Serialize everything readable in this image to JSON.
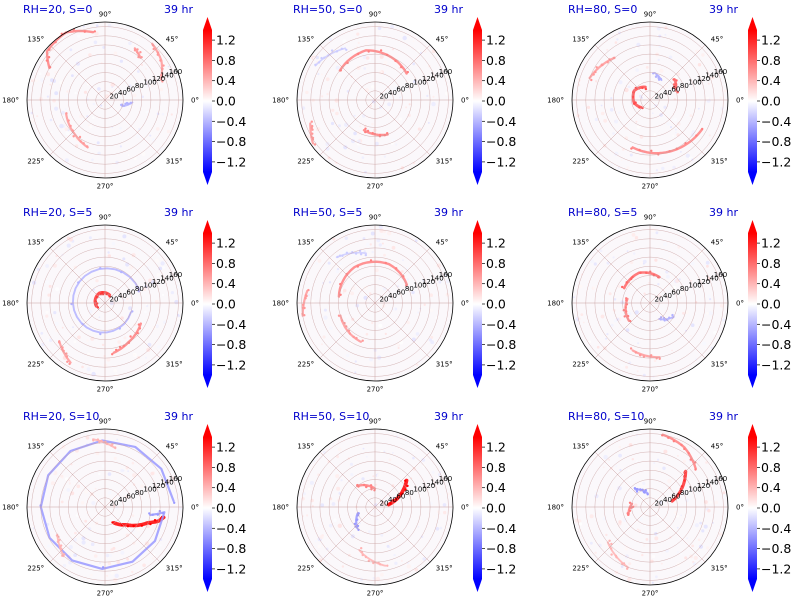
{
  "figure": {
    "layout": "3 rows x 3 columns of polar contour panels, each with its own vertical colorbar",
    "time_label": "39 hr"
  },
  "colormap": {
    "name": "bwr",
    "low_color": "#0000ff",
    "mid_color": "#ffffff",
    "high_color": "#ff0000"
  },
  "chart_data": [
    {
      "type": "heatmap",
      "projection": "polar",
      "title": "RH=20, S=0",
      "time": "39 hr",
      "rh": 20,
      "s": 0,
      "row": 0,
      "col": 0,
      "angle_ticks": [
        "0°",
        "45°",
        "90°",
        "135°",
        "180°",
        "225°",
        "270°",
        "315°"
      ],
      "radius_ticks": [
        20,
        40,
        60,
        80,
        100,
        120,
        140,
        160
      ],
      "colorbar": {
        "ticks": [
          "1.2",
          "0.8",
          "0.4",
          "0.0",
          "−0.4",
          "−0.8",
          "−1.2"
        ],
        "vmin": -1.4,
        "vmax": 1.4,
        "extend": "both"
      },
      "features": [
        {
          "sign": 1,
          "r": [
            150,
            170,
            165,
            140
          ],
          "theta": [
            100,
            120,
            140,
            150
          ],
          "amp": 0.5
        },
        {
          "sign": 1,
          "r": [
            120,
            130
          ],
          "theta": [
            50,
            60
          ],
          "amp": 0.4
        },
        {
          "sign": 1,
          "r": [
            90,
            100,
            110
          ],
          "theta": [
            200,
            230,
            250
          ],
          "amp": 0.4
        },
        {
          "sign": -1,
          "r": [
            40,
            60
          ],
          "theta": [
            340,
            355
          ],
          "amp": 0.3
        },
        {
          "sign": 1,
          "r": [
            130,
            150,
            160
          ],
          "theta": [
            20,
            35,
            50
          ],
          "amp": 0.4
        }
      ]
    },
    {
      "type": "heatmap",
      "projection": "polar",
      "title": "RH=50, S=0",
      "time": "39 hr",
      "rh": 50,
      "s": 0,
      "row": 0,
      "col": 1,
      "angle_ticks": [
        "0°",
        "45°",
        "90°",
        "135°",
        "180°",
        "225°",
        "270°",
        "315°"
      ],
      "radius_ticks": [
        20,
        40,
        60,
        80,
        100,
        120,
        140,
        160
      ],
      "colorbar": {
        "ticks": [
          "1.2",
          "0.8",
          "0.4",
          "0.0",
          "−0.4",
          "−0.8",
          "−1.2"
        ],
        "vmin": -1.4,
        "vmax": 1.4,
        "extend": "both"
      },
      "features": [
        {
          "sign": 1,
          "r": [
            90,
            100,
            110,
            100
          ],
          "theta": [
            40,
            70,
            100,
            140
          ],
          "amp": 0.5
        },
        {
          "sign": 1,
          "r": [
            70,
            80
          ],
          "theta": [
            250,
            290
          ],
          "amp": 0.5
        },
        {
          "sign": 1,
          "r": [
            150,
            165
          ],
          "theta": [
            200,
            215
          ],
          "amp": 0.4
        },
        {
          "sign": -1,
          "r": [
            130,
            150
          ],
          "theta": [
            120,
            150
          ],
          "amp": 0.2
        }
      ]
    },
    {
      "type": "heatmap",
      "projection": "polar",
      "title": "RH=80, S=0",
      "time": "39 hr",
      "rh": 80,
      "s": 0,
      "row": 0,
      "col": 2,
      "angle_ticks": [
        "0°",
        "45°",
        "90°",
        "135°",
        "180°",
        "225°",
        "270°",
        "315°"
      ],
      "radius_ticks": [
        20,
        40,
        60,
        80,
        100,
        120,
        140,
        160
      ],
      "colorbar": {
        "ticks": [
          "1.2",
          "0.8",
          "0.4",
          "0.0",
          "−0.4",
          "−0.8",
          "−1.2"
        ],
        "vmin": -1.4,
        "vmax": 1.4,
        "extend": "both"
      },
      "features": [
        {
          "sign": 1,
          "r": [
            30,
            40,
            35,
            25
          ],
          "theta": [
            110,
            150,
            190,
            220
          ],
          "amp": 0.7
        },
        {
          "sign": 1,
          "r": [
            60,
            70
          ],
          "theta": [
            20,
            40
          ],
          "amp": 0.6
        },
        {
          "sign": 1,
          "r": [
            110,
            120,
            130
          ],
          "theta": [
            250,
            290,
            330
          ],
          "amp": 0.5
        },
        {
          "sign": 1,
          "r": [
            120,
            140
          ],
          "theta": [
            130,
            160
          ],
          "amp": 0.4
        },
        {
          "sign": -1,
          "r": [
            50,
            60
          ],
          "theta": [
            60,
            80
          ],
          "amp": 0.3
        }
      ]
    },
    {
      "type": "heatmap",
      "projection": "polar",
      "title": "RH=20, S=5",
      "time": "39 hr",
      "rh": 20,
      "s": 5,
      "row": 1,
      "col": 0,
      "angle_ticks": [
        "0°",
        "45°",
        "90°",
        "135°",
        "180°",
        "225°",
        "270°",
        "315°"
      ],
      "radius_ticks": [
        20,
        40,
        60,
        80,
        100,
        120,
        140,
        160
      ],
      "colorbar": {
        "ticks": [
          "1.2",
          "0.8",
          "0.4",
          "0.0",
          "−0.4",
          "−0.8",
          "−1.2"
        ],
        "vmin": -1.4,
        "vmax": 1.4,
        "extend": "both"
      },
      "features": [
        {
          "sign": 1,
          "r": [
            20,
            25,
            20
          ],
          "theta": [
            60,
            120,
            200
          ],
          "amp": 0.8
        },
        {
          "sign": 1,
          "r": [
            90,
            100,
            110
          ],
          "theta": [
            330,
            300,
            280
          ],
          "amp": 0.5
        },
        {
          "sign": 1,
          "r": [
            130,
            150
          ],
          "theta": [
            220,
            240
          ],
          "amp": 0.4
        },
        {
          "sign": -1,
          "r": [
            60,
            80
          ],
          "theta": [
            340,
            20
          ],
          "amp": 0.3
        }
      ]
    },
    {
      "type": "heatmap",
      "projection": "polar",
      "title": "RH=50, S=5",
      "time": "39 hr",
      "rh": 50,
      "s": 5,
      "row": 1,
      "col": 1,
      "angle_ticks": [
        "0°",
        "45°",
        "90°",
        "135°",
        "180°",
        "225°",
        "270°",
        "315°"
      ],
      "radius_ticks": [
        20,
        40,
        60,
        80,
        100,
        120,
        140,
        160
      ],
      "colorbar": {
        "ticks": [
          "1.2",
          "0.8",
          "0.4",
          "0.0",
          "−0.4",
          "−0.8",
          "−1.2"
        ],
        "vmin": -1.4,
        "vmax": 1.4,
        "extend": "both"
      },
      "features": [
        {
          "sign": 1,
          "r": [
            80,
            90,
            90,
            80
          ],
          "theta": [
            30,
            70,
            120,
            170
          ],
          "amp": 0.5
        },
        {
          "sign": 1,
          "r": [
            80,
            90
          ],
          "theta": [
            200,
            250
          ],
          "amp": 0.4
        },
        {
          "sign": 1,
          "r": [
            150,
            160
          ],
          "theta": [
            170,
            190
          ],
          "amp": 0.4
        },
        {
          "sign": -1,
          "r": [
            110,
            130
          ],
          "theta": [
            100,
            130
          ],
          "amp": 0.2
        }
      ]
    },
    {
      "type": "heatmap",
      "projection": "polar",
      "title": "RH=80, S=5",
      "time": "39 hr",
      "rh": 80,
      "s": 5,
      "row": 1,
      "col": 2,
      "angle_ticks": [
        "0°",
        "45°",
        "90°",
        "135°",
        "180°",
        "225°",
        "270°",
        "315°"
      ],
      "radius_ticks": [
        20,
        40,
        60,
        80,
        100,
        120,
        140,
        160
      ],
      "colorbar": {
        "ticks": [
          "1.2",
          "0.8",
          "0.4",
          "0.0",
          "−0.4",
          "−0.8",
          "−1.2"
        ],
        "vmin": -1.4,
        "vmax": 1.4,
        "extend": "both"
      },
      "features": [
        {
          "sign": 1,
          "r": [
            60,
            70,
            65
          ],
          "theta": [
            70,
            110,
            150
          ],
          "amp": 0.6
        },
        {
          "sign": 1,
          "r": [
            50,
            60
          ],
          "theta": [
            170,
            220
          ],
          "amp": 0.5
        },
        {
          "sign": 1,
          "r": [
            110,
            120
          ],
          "theta": [
            250,
            280
          ],
          "amp": 0.4
        },
        {
          "sign": -1,
          "r": [
            40,
            60
          ],
          "theta": [
            300,
            330
          ],
          "amp": 0.3
        }
      ]
    },
    {
      "type": "heatmap",
      "projection": "polar",
      "title": "RH=20, S=10",
      "time": "39 hr",
      "rh": 20,
      "s": 10,
      "row": 2,
      "col": 0,
      "angle_ticks": [
        "0°",
        "45°",
        "90°",
        "135°",
        "180°",
        "225°",
        "270°",
        "315°"
      ],
      "radius_ticks": [
        20,
        40,
        60,
        80,
        100,
        120,
        140,
        160
      ],
      "colorbar": {
        "ticks": [
          "1.2",
          "0.8",
          "0.4",
          "0.0",
          "−0.4",
          "−0.8",
          "−1.2"
        ],
        "vmin": -1.4,
        "vmax": 1.4,
        "extend": "both"
      },
      "features": [
        {
          "sign": 1,
          "r": [
            40,
            60,
            80,
            100,
            120,
            130
          ],
          "theta": [
            300,
            320,
            330,
            340,
            345,
            350
          ],
          "amp": 1.0
        },
        {
          "sign": -1,
          "r": [
            100,
            130,
            150
          ],
          "theta": [
            350,
            355,
            5
          ],
          "amp": 0.4
        },
        {
          "sign": 1,
          "r": [
            120,
            140
          ],
          "theta": [
            210,
            230
          ],
          "amp": 0.3
        },
        {
          "sign": 1,
          "r": [
            130,
            150
          ],
          "theta": [
            80,
            100
          ],
          "amp": 0.3
        }
      ]
    },
    {
      "type": "heatmap",
      "projection": "polar",
      "title": "RH=50, S=10",
      "time": "39 hr",
      "rh": 50,
      "s": 10,
      "row": 2,
      "col": 1,
      "angle_ticks": [
        "0°",
        "45°",
        "90°",
        "135°",
        "180°",
        "225°",
        "270°",
        "315°"
      ],
      "radius_ticks": [
        20,
        40,
        60,
        80,
        100,
        120,
        140,
        160
      ],
      "colorbar": {
        "ticks": [
          "1.2",
          "0.8",
          "0.4",
          "0.0",
          "−0.4",
          "−0.8",
          "−1.2"
        ],
        "vmin": -1.4,
        "vmax": 1.4,
        "extend": "both"
      },
      "features": [
        {
          "sign": 1,
          "r": [
            30,
            50,
            70,
            90
          ],
          "theta": [
            10,
            20,
            30,
            40
          ],
          "amp": 1.0
        },
        {
          "sign": 1,
          "r": [
            40,
            60
          ],
          "theta": [
            90,
            130
          ],
          "amp": 0.5
        },
        {
          "sign": -1,
          "r": [
            40,
            60
          ],
          "theta": [
            200,
            230
          ],
          "amp": 0.4
        },
        {
          "sign": 1,
          "r": [
            100,
            130
          ],
          "theta": [
            250,
            280
          ],
          "amp": 0.3
        }
      ]
    },
    {
      "type": "heatmap",
      "projection": "polar",
      "title": "RH=80, S=10",
      "time": "39 hr",
      "rh": 80,
      "s": 10,
      "row": 2,
      "col": 2,
      "angle_ticks": [
        "0°",
        "45°",
        "90°",
        "135°",
        "180°",
        "225°",
        "270°",
        "315°"
      ],
      "radius_ticks": [
        20,
        40,
        60,
        80,
        100,
        120,
        140,
        160
      ],
      "colorbar": {
        "ticks": [
          "1.2",
          "0.8",
          "0.4",
          "0.0",
          "−0.4",
          "−0.8",
          "−1.2"
        ],
        "vmin": -1.4,
        "vmax": 1.4,
        "extend": "both"
      },
      "features": [
        {
          "sign": 1,
          "r": [
            50,
            70,
            90,
            110
          ],
          "theta": [
            15,
            25,
            35,
            45
          ],
          "amp": 0.8
        },
        {
          "sign": 1,
          "r": [
            130,
            150,
            160
          ],
          "theta": [
            40,
            60,
            80
          ],
          "amp": 0.5
        },
        {
          "sign": 1,
          "r": [
            40,
            50
          ],
          "theta": [
            170,
            200
          ],
          "amp": 0.5
        },
        {
          "sign": -1,
          "r": [
            30,
            50
          ],
          "theta": [
            100,
            130
          ],
          "amp": 0.4
        },
        {
          "sign": 1,
          "r": [
            120,
            140
          ],
          "theta": [
            220,
            250
          ],
          "amp": 0.3
        }
      ]
    }
  ]
}
